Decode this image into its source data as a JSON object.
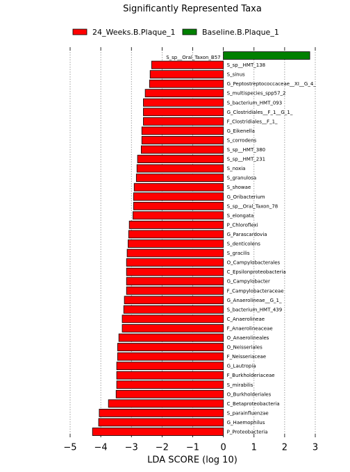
{
  "chart_data": {
    "type": "bar",
    "orientation": "horizontal",
    "title": "Significantly Represented Taxa",
    "xlabel": "LDA SCORE (log 10)",
    "categories": [
      "S_sp__Oral_Taxon_B57",
      "S_sp__HMT_138",
      "S_sinus",
      "G_Peptostreptococcaceae__XI__G_4_",
      "S_multispecies_spp57_2",
      "S_bacterium_HMT_093",
      "G_Clostridiales__F_1__G_1_",
      "F_Clostridiales__F_1_",
      "G_Eikenella",
      "S_corrodens",
      "S_sp__HMT_380",
      "S_sp__HMT_231",
      "S_noxia",
      "S_granulosa",
      "S_showae",
      "G_Oribacterium",
      "S_sp__Oral_Taxon_78",
      "S_elongata",
      "P_Chloroflexi",
      "G_Parascardovia",
      "S_denticolens",
      "S_gracilis",
      "O_Campylobacterales",
      "C_Epsilonproteobacteria",
      "G_Campylobacter",
      "F_Campylobacteraceae",
      "G_Anaerolineae__G_1_",
      "S_bacterium_HMT_439",
      "C_Anaerolineae",
      "F_Anaerolineaceae",
      "O_Anaerolineales",
      "O_Neisseriales",
      "F_Neisseriaceae",
      "G_Lautropia",
      "F_Burkholderiaceae",
      "S_mirabilis",
      "O_Burkholderiales",
      "C_Betaproteobacteria",
      "S_parainfluenzae",
      "G_Haemophilus",
      "P_Proteobacteria"
    ],
    "series": [
      {
        "name": "24_Weeks.B.Plaque_1",
        "color": "#ff0000",
        "values": [
          null,
          -2.34,
          -2.39,
          -2.41,
          -2.55,
          -2.61,
          -2.61,
          -2.61,
          -2.66,
          -2.66,
          -2.68,
          -2.8,
          -2.82,
          -2.84,
          -2.91,
          -2.93,
          -2.93,
          -2.95,
          -3.07,
          -3.09,
          -3.11,
          -3.14,
          -3.16,
          -3.16,
          -3.16,
          -3.16,
          -3.23,
          -3.25,
          -3.3,
          -3.3,
          -3.41,
          -3.45,
          -3.45,
          -3.48,
          -3.48,
          -3.48,
          -3.5,
          -3.75,
          -4.05,
          -4.07,
          -4.27
        ]
      },
      {
        "name": "Baseline.B.Plaque_1",
        "color": "#008000",
        "values": [
          2.82,
          null,
          null,
          null,
          null,
          null,
          null,
          null,
          null,
          null,
          null,
          null,
          null,
          null,
          null,
          null,
          null,
          null,
          null,
          null,
          null,
          null,
          null,
          null,
          null,
          null,
          null,
          null,
          null,
          null,
          null,
          null,
          null,
          null,
          null,
          null,
          null,
          null,
          null,
          null,
          null
        ]
      }
    ],
    "xlim": [
      -5,
      3
    ],
    "xticks": [
      {
        "value": -5,
        "label": "−5"
      },
      {
        "value": -4,
        "label": "−4"
      },
      {
        "value": -3,
        "label": "−3"
      },
      {
        "value": -2,
        "label": "−2"
      },
      {
        "value": -1,
        "label": "−1"
      },
      0,
      1,
      2,
      3
    ],
    "grid": true
  }
}
